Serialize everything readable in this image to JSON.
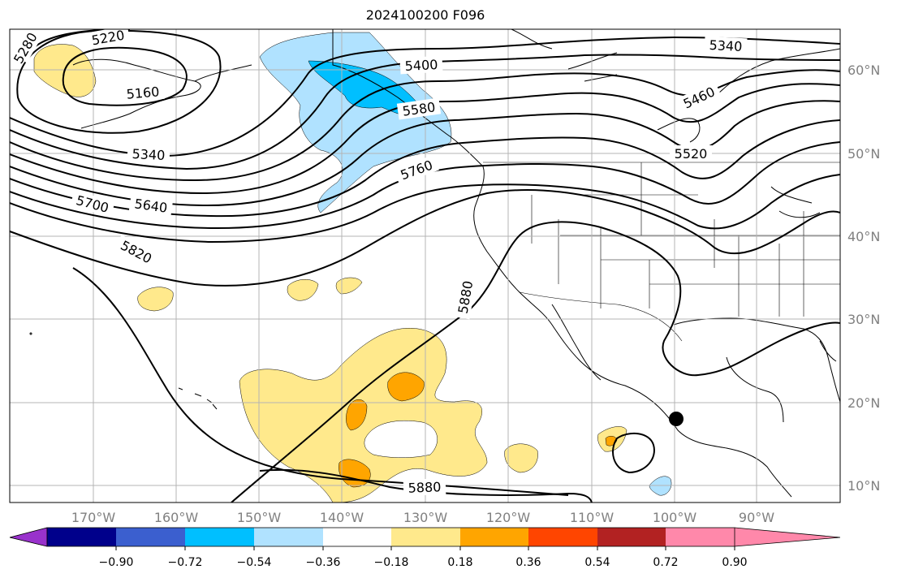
{
  "title": "2024100200 F096",
  "lon_labels": [
    "170°W",
    "160°W",
    "150°W",
    "140°W",
    "130°W",
    "120°W",
    "110°W",
    "100°W",
    "90°W"
  ],
  "lat_labels": [
    "60°N",
    "50°N",
    "40°N",
    "30°N",
    "20°N",
    "10°N"
  ],
  "contour_labels": [
    "5280",
    "5220",
    "5160",
    "5340",
    "5700",
    "5640",
    "5820",
    "5400",
    "5580",
    "5760",
    "5880",
    "5340",
    "5460",
    "5520",
    "5880"
  ],
  "colorbar": {
    "ticks": [
      "−0.90",
      "−0.72",
      "−0.54",
      "−0.36",
      "−0.18",
      "0.18",
      "0.36",
      "0.54",
      "0.72",
      "0.90"
    ],
    "colors": [
      "#9932cc",
      "#00008b",
      "#3b5fcf",
      "#00bfff",
      "#b0e2ff",
      "#ffffff",
      "#ffe98c",
      "#ffa500",
      "#ff4500",
      "#b22222",
      "#ff88aa"
    ]
  }
}
